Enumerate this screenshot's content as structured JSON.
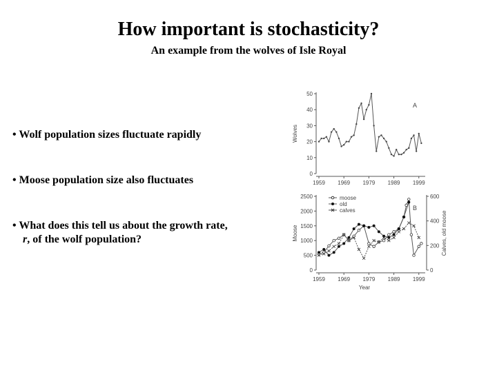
{
  "slide": {
    "title": "How important is stochasticity?",
    "subtitle": "An example from the wolves of Isle Royal",
    "bullets": [
      {
        "marker": "•",
        "text": "Wolf population sizes fluctuate rapidly"
      },
      {
        "marker": "•",
        "text": "Moose population size also fluctuates"
      },
      {
        "marker": "•",
        "text": "What does this tell us about the growth rate,",
        "line2_var": "r",
        "line2_rest": ", of the wolf population?"
      }
    ]
  },
  "chart_data": [
    {
      "type": "line",
      "panel_label": "A",
      "ylabel": "Wolves",
      "ylim": [
        0,
        50
      ],
      "yticks": [
        "0",
        "10",
        "20",
        "30",
        "40",
        "50"
      ],
      "xticks": [
        "1959",
        "1969",
        "1979",
        "1989",
        "1999"
      ],
      "xlim": [
        1959,
        2001
      ],
      "series": [
        {
          "name": "wolves",
          "x": [
            1959,
            1960,
            1961,
            1962,
            1963,
            1964,
            1965,
            1966,
            1967,
            1968,
            1969,
            1970,
            1971,
            1972,
            1973,
            1974,
            1975,
            1976,
            1977,
            1978,
            1979,
            1980,
            1981,
            1982,
            1983,
            1984,
            1985,
            1986,
            1987,
            1988,
            1989,
            1990,
            1991,
            1992,
            1993,
            1994,
            1995,
            1996,
            1997,
            1998,
            1999,
            2000
          ],
          "values": [
            20,
            22,
            22,
            23,
            20,
            26,
            28,
            26,
            22,
            17,
            18,
            20,
            20,
            23,
            24,
            31,
            41,
            44,
            34,
            40,
            43,
            50,
            30,
            14,
            23,
            24,
            22,
            20,
            16,
            12,
            11,
            15,
            12,
            12,
            13,
            15,
            16,
            22,
            24,
            14,
            25,
            19
          ]
        }
      ]
    },
    {
      "type": "line",
      "panel_label": "B",
      "ylabel": "Moose",
      "y2label": "Calves, old moose",
      "xlabel": "Year",
      "ylim": [
        0,
        2500
      ],
      "yticks": [
        "0",
        "500",
        "1000",
        "1500",
        "2000",
        "2500"
      ],
      "y2lim": [
        0,
        600
      ],
      "y2ticks": [
        "0",
        "200",
        "400",
        "600"
      ],
      "xticks": [
        "1959",
        "1969",
        "1979",
        "1989",
        "1999"
      ],
      "xlim": [
        1959,
        2001
      ],
      "legend": [
        "moose",
        "old",
        "calves"
      ],
      "legend_position": "top-left",
      "series": [
        {
          "name": "moose",
          "axis": "left",
          "x": [
            1959,
            1961,
            1963,
            1965,
            1967,
            1969,
            1971,
            1973,
            1975,
            1977,
            1979,
            1981,
            1983,
            1985,
            1987,
            1989,
            1991,
            1993,
            1994,
            1995,
            1996,
            1997,
            1999,
            2000
          ],
          "values": [
            540,
            600,
            820,
            1000,
            1080,
            1200,
            1000,
            1150,
            1350,
            1500,
            900,
            800,
            950,
            1000,
            1200,
            1300,
            1400,
            1800,
            2200,
            2400,
            1200,
            500,
            800,
            900
          ]
        },
        {
          "name": "old",
          "axis": "left",
          "x": [
            1959,
            1961,
            1963,
            1965,
            1967,
            1969,
            1971,
            1973,
            1975,
            1977,
            1979,
            1981,
            1983,
            1985,
            1987,
            1989,
            1991,
            1993,
            1995
          ],
          "values": [
            600,
            700,
            500,
            600,
            800,
            900,
            1100,
            1400,
            1550,
            1500,
            1450,
            1500,
            1300,
            1150,
            1100,
            1200,
            1400,
            1800,
            2300
          ]
        },
        {
          "name": "calves",
          "axis": "left",
          "x": [
            1959,
            1961,
            1963,
            1965,
            1967,
            1969,
            1971,
            1973,
            1975,
            1977,
            1979,
            1981,
            1983,
            1985,
            1987,
            1989,
            1991,
            1993,
            1995,
            1997,
            1999
          ],
          "values": [
            500,
            550,
            650,
            800,
            900,
            1200,
            1000,
            1100,
            700,
            400,
            800,
            1000,
            950,
            1100,
            1000,
            1100,
            1300,
            1400,
            1600,
            1500,
            1100
          ]
        }
      ]
    }
  ]
}
